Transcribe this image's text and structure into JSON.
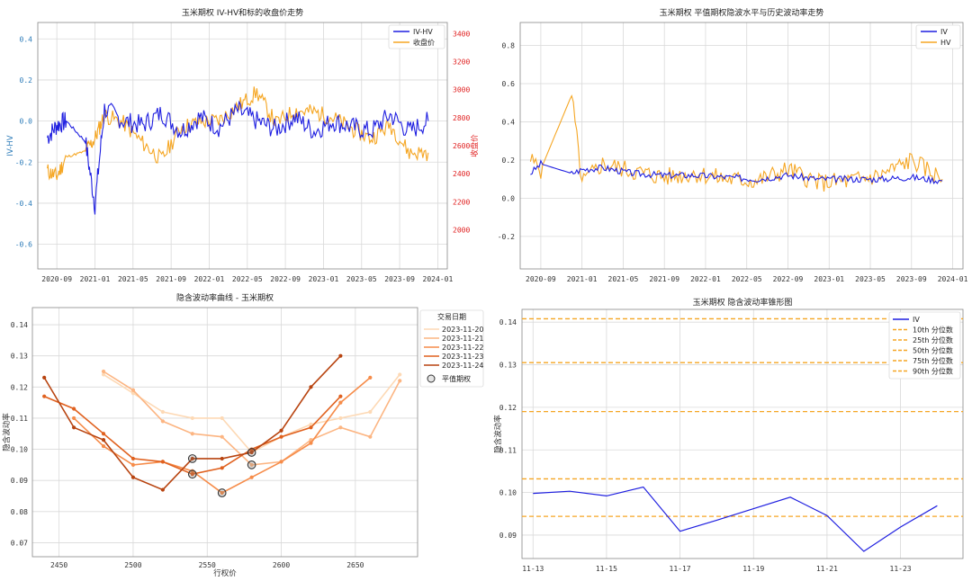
{
  "chart_data": [
    {
      "type": "line",
      "title": "玉米期权 IV-HV和标的收盘价走势",
      "ylabel": "IV-HV",
      "y2label": "收盘价",
      "ylim": [
        -0.72,
        0.48
      ],
      "y2lim": [
        1720,
        3480
      ],
      "yticks": [
        "0.4",
        "0.2",
        "0.0",
        "-0.2",
        "-0.4",
        "-0.6"
      ],
      "y2ticks": [
        "3400",
        "3200",
        "3000",
        "2800",
        "2600",
        "2400",
        "2200",
        "2000"
      ],
      "xticks": [
        "2020-09",
        "2021-01",
        "2021-05",
        "2021-09",
        "2022-01",
        "2022-05",
        "2022-09",
        "2023-01",
        "2023-05",
        "2023-09",
        "2024-01"
      ],
      "legend": [
        "IV-HV",
        "收盘价"
      ],
      "legend_position": "top-right",
      "colors": {
        "iv_hv": "#1f1fe0",
        "close": "#f5a623",
        "right_axis": "#e02020",
        "left_axis": "#2a7ab8"
      },
      "series": [
        {
          "name": "IV-HV",
          "axis": "left",
          "x": [
            "2020-08",
            "2020-09",
            "2020-10",
            "2020-12",
            "2021-01",
            "2021-02",
            "2021-04",
            "2021-06",
            "2021-08",
            "2021-10",
            "2021-12",
            "2022-02",
            "2022-04",
            "2022-06",
            "2022-08",
            "2022-10",
            "2022-12",
            "2023-02",
            "2023-04",
            "2023-06",
            "2023-08",
            "2023-10",
            "2023-12"
          ],
          "values": [
            -0.08,
            -0.02,
            0.0,
            -0.1,
            -0.41,
            0.06,
            0.0,
            -0.02,
            0.04,
            -0.05,
            0.02,
            -0.03,
            0.05,
            0.0,
            -0.04,
            0.02,
            -0.05,
            0.0,
            -0.03,
            -0.05,
            0.03,
            -0.05,
            0.0
          ]
        },
        {
          "name": "收盘价",
          "axis": "right",
          "x": [
            "2020-08",
            "2020-09",
            "2020-10",
            "2020-12",
            "2021-01",
            "2021-02",
            "2021-04",
            "2021-06",
            "2021-08",
            "2021-10",
            "2021-12",
            "2022-02",
            "2022-04",
            "2022-06",
            "2022-08",
            "2022-10",
            "2022-12",
            "2023-02",
            "2023-04",
            "2023-06",
            "2023-08",
            "2023-10",
            "2023-12"
          ],
          "values": [
            2420,
            2380,
            2520,
            2560,
            2650,
            2820,
            2760,
            2620,
            2500,
            2730,
            2770,
            2780,
            2880,
            2980,
            2760,
            2850,
            2840,
            2800,
            2720,
            2650,
            2750,
            2550,
            2550
          ]
        }
      ]
    },
    {
      "type": "line",
      "title": "玉米期权 平值期权隐波水平与历史波动率走势",
      "ylim": [
        -0.37,
        0.92
      ],
      "yticks": [
        "0.8",
        "0.6",
        "0.4",
        "0.2",
        "0.0",
        "-0.2"
      ],
      "xticks": [
        "2020-09",
        "2021-01",
        "2021-05",
        "2021-09",
        "2022-01",
        "2022-05",
        "2022-09",
        "2023-01",
        "2023-05",
        "2023-09",
        "2024-01"
      ],
      "legend": [
        "IV",
        "HV"
      ],
      "legend_position": "top-right",
      "colors": {
        "iv": "#1f1fe0",
        "hv": "#f5a623"
      },
      "series": [
        {
          "name": "IV",
          "x": [
            "2020-08",
            "2020-09",
            "2020-12",
            "2021-01",
            "2021-03",
            "2021-06",
            "2021-09",
            "2021-12",
            "2022-03",
            "2022-06",
            "2022-09",
            "2022-12",
            "2023-03",
            "2023-06",
            "2023-09",
            "2023-12"
          ],
          "values": [
            0.13,
            0.18,
            0.13,
            0.15,
            0.16,
            0.13,
            0.12,
            0.12,
            0.11,
            0.1,
            0.12,
            0.1,
            0.1,
            0.1,
            0.11,
            0.09
          ]
        },
        {
          "name": "HV",
          "x": [
            "2020-08",
            "2020-09",
            "2020-12",
            "2021-01",
            "2021-03",
            "2021-06",
            "2021-09",
            "2021-12",
            "2022-03",
            "2022-06",
            "2022-09",
            "2022-12",
            "2023-03",
            "2023-06",
            "2023-09",
            "2023-12"
          ],
          "values": [
            0.2,
            0.15,
            0.54,
            0.08,
            0.18,
            0.14,
            0.11,
            0.13,
            0.1,
            0.09,
            0.15,
            0.08,
            0.09,
            0.12,
            0.2,
            0.1
          ]
        }
      ]
    },
    {
      "type": "line",
      "title": "隐含波动率曲线 - 玉米期权",
      "xlabel": "行权价",
      "ylabel": "隐含波动率",
      "xlim": [
        2432,
        2692
      ],
      "ylim": [
        0.0655,
        0.1455
      ],
      "xticks": [
        2450,
        2500,
        2550,
        2600,
        2650
      ],
      "yticks": [
        "0.14",
        "0.13",
        "0.12",
        "0.11",
        "0.10",
        "0.09",
        "0.08",
        "0.07"
      ],
      "legend_title": "交易日期",
      "legend_position": "outside-right",
      "atm_label": "平值期权",
      "categories": [
        2440,
        2460,
        2480,
        2500,
        2520,
        2540,
        2560,
        2580,
        2600,
        2620,
        2640,
        2660,
        2680
      ],
      "series": [
        {
          "name": "2023-11-20",
          "color": "#fdd9b5",
          "x": [
            2480,
            2500,
            2520,
            2540,
            2560,
            2580,
            2600,
            2620,
            2640,
            2660,
            2680
          ],
          "values": [
            0.124,
            0.118,
            0.112,
            0.11,
            0.11,
            0.099,
            0.104,
            0.108,
            0.11,
            0.112,
            0.124
          ]
        },
        {
          "name": "2023-11-21",
          "color": "#fcb582",
          "x": [
            2480,
            2500,
            2520,
            2540,
            2560,
            2580,
            2600,
            2620,
            2640,
            2660,
            2680
          ],
          "values": [
            0.125,
            0.119,
            0.109,
            0.105,
            0.104,
            0.095,
            0.096,
            0.103,
            0.107,
            0.104,
            0.122
          ]
        },
        {
          "name": "2023-11-22",
          "color": "#f68c4a",
          "x": [
            2460,
            2480,
            2500,
            2520,
            2540,
            2560,
            2580,
            2600,
            2620,
            2640,
            2660
          ],
          "values": [
            0.11,
            0.101,
            0.095,
            0.096,
            0.093,
            0.086,
            0.091,
            0.096,
            0.102,
            0.115,
            0.123
          ]
        },
        {
          "name": "2023-11-23",
          "color": "#e0611f",
          "x": [
            2440,
            2460,
            2480,
            2500,
            2520,
            2540,
            2560,
            2580,
            2600,
            2620,
            2640
          ],
          "values": [
            0.117,
            0.113,
            0.105,
            0.097,
            0.096,
            0.092,
            0.094,
            0.1,
            0.104,
            0.107,
            0.117
          ]
        },
        {
          "name": "2023-11-24",
          "color": "#b84410",
          "x": [
            2440,
            2460,
            2480,
            2500,
            2520,
            2540,
            2560,
            2580,
            2600,
            2620,
            2640
          ],
          "values": [
            0.123,
            0.107,
            0.103,
            0.091,
            0.087,
            0.097,
            0.097,
            0.099,
            0.106,
            0.12,
            0.13
          ]
        }
      ],
      "atm_points": [
        {
          "x": 2540,
          "y": 0.097
        },
        {
          "x": 2540,
          "y": 0.092
        },
        {
          "x": 2560,
          "y": 0.086
        },
        {
          "x": 2580,
          "y": 0.099
        },
        {
          "x": 2580,
          "y": 0.095
        }
      ]
    },
    {
      "type": "line",
      "title": "玉米期权 隐含波动率锥形图",
      "ylabel": "隐含波动率",
      "ylim": [
        0.0845,
        0.143
      ],
      "yticks": [
        "0.14",
        "0.13",
        "0.12",
        "0.11",
        "0.10",
        "0.09"
      ],
      "xticks": [
        "11-13",
        "11-15",
        "11-17",
        "11-19",
        "11-21",
        "11-23"
      ],
      "legend": [
        "IV",
        "10th 分位数",
        "25th 分位数",
        "50th 分位数",
        "75th 分位数",
        "90th 分位数"
      ],
      "legend_position": "top-right",
      "colors": {
        "iv": "#1f1fe0",
        "quantile": "#f5a623"
      },
      "series": [
        {
          "name": "IV",
          "x": [
            "11-13",
            "11-14",
            "11-15",
            "11-16",
            "11-17",
            "11-18",
            "11-19",
            "11-20",
            "11-21",
            "11-22",
            "11-23",
            "11-24"
          ],
          "values": [
            0.0998,
            0.1003,
            0.0992,
            0.1013,
            0.0909,
            0.0935,
            0.0962,
            0.0989,
            0.0946,
            0.0862,
            0.0919,
            0.0969
          ]
        }
      ],
      "quantiles": [
        0.0944,
        0.1032,
        0.119,
        0.1305,
        0.1408
      ]
    }
  ]
}
